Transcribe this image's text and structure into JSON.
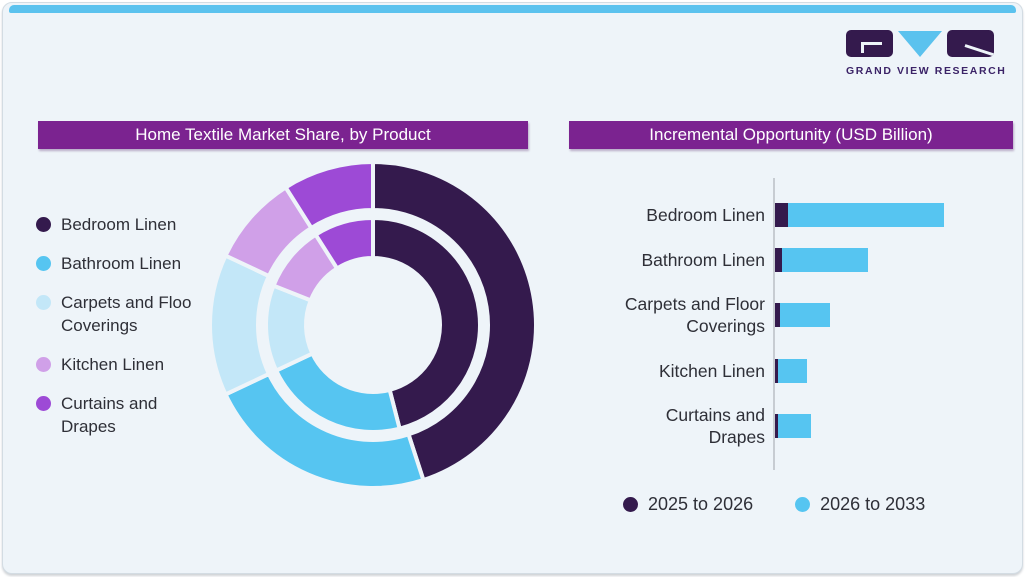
{
  "page": {
    "card_bg": "#eef4f9",
    "top_strip_color": "#5bc2ee",
    "title_bar_bg": "#7b2390",
    "axis_color": "#c7ccd2",
    "text_color": "#2e2f37"
  },
  "logo": {
    "text": "GRAND VIEW RESEARCH",
    "dark_color": "#341a4d",
    "blue_color": "#5bc2ee",
    "text_color": "#3b2367"
  },
  "left_panel": {
    "title": "Home Textile Market Share, by Product",
    "legend_lines": [
      [
        "Bedroom Linen"
      ],
      [
        "Bathroom Linen"
      ],
      [
        "Carpets and Floo",
        "Coverings"
      ],
      [
        "Kitchen Linen"
      ],
      [
        "Curtains and",
        "Drapes"
      ]
    ]
  },
  "right_panel": {
    "title": "Incremental Opportunity (USD Billion)",
    "category_lines": [
      [
        "Bedroom Linen"
      ],
      [
        "Bathroom Linen"
      ],
      [
        "Carpets and Floor",
        "Coverings"
      ],
      [
        "Kitchen Linen"
      ],
      [
        "Curtains and",
        "Drapes"
      ]
    ],
    "legend": [
      {
        "label": "2025 to 2026",
        "color": "#341a4d"
      },
      {
        "label": "2026 to 2033",
        "color": "#56c5f1"
      }
    ]
  },
  "chart_data": [
    {
      "type": "pie",
      "variant": "double-ring-donut",
      "title": "Home Textile Market Share, by Product",
      "categories": [
        "Bedroom Linen",
        "Bathroom Linen",
        "Carpets and Floor Coverings",
        "Kitchen Linen",
        "Curtains and Drapes"
      ],
      "colors": [
        "#341a4d",
        "#56c5f1",
        "#c3e7f8",
        "#d0a0e8",
        "#9d4ad6"
      ],
      "series": [
        {
          "name": "inner ring",
          "values": [
            46,
            22,
            13,
            10,
            9
          ]
        },
        {
          "name": "outer ring",
          "values": [
            45,
            23,
            14,
            9,
            9
          ]
        }
      ],
      "units": "percent share (estimated from arc angles; no numeric labels shown)",
      "legend_position": "left",
      "start_angle_deg": 0,
      "direction": "clockwise"
    },
    {
      "type": "bar",
      "orientation": "horizontal",
      "stacked": true,
      "title": "Incremental Opportunity (USD Billion)",
      "categories": [
        "Bedroom Linen",
        "Bathroom Linen",
        "Carpets and Floor Coverings",
        "Kitchen Linen",
        "Curtains and Drapes"
      ],
      "series": [
        {
          "name": "2025 to 2026",
          "color": "#341a4d",
          "values": [
            1.3,
            0.7,
            0.5,
            0.25,
            0.3
          ]
        },
        {
          "name": "2026 to 2033",
          "color": "#56c5f1",
          "values": [
            15.6,
            8.6,
            5.0,
            2.9,
            3.3
          ]
        }
      ],
      "xlabel": "",
      "ylabel": "",
      "xlim": [
        0,
        17
      ],
      "value_labels": false,
      "grid": false,
      "legend_position": "bottom",
      "units": "USD Billion (estimated from bar lengths; no numeric labels shown)"
    }
  ]
}
